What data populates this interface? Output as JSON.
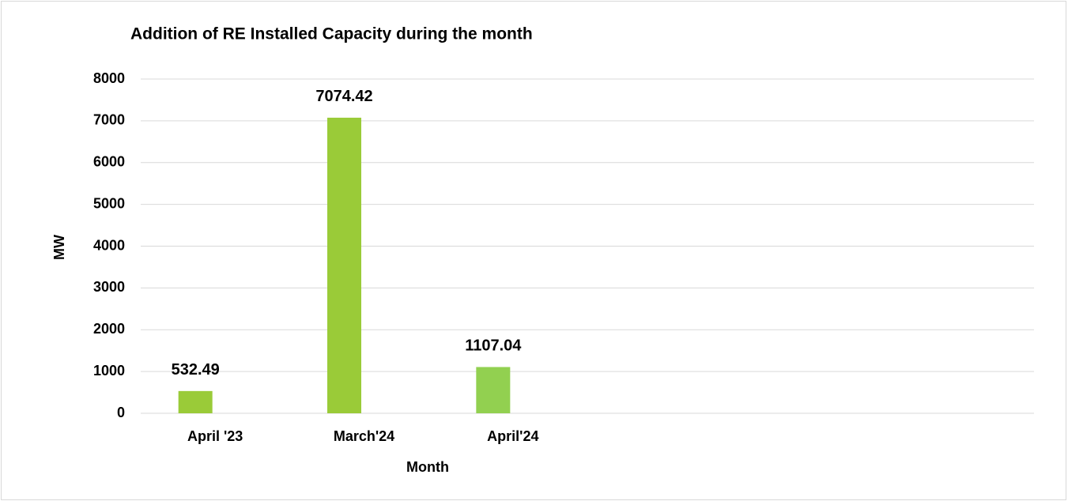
{
  "chart_data": {
    "type": "bar",
    "title": "Addition of  RE Installed Capacity during the month",
    "x_label": "Month",
    "y_label": "MW",
    "categories": [
      "April '23",
      "March'24",
      "April'24",
      null,
      null,
      null
    ],
    "values": [
      532.49,
      7074.42,
      1107.04,
      null,
      null,
      null
    ],
    "colors": [
      "#9acb38",
      "#9acb38",
      "#92d050"
    ],
    "ylim": [
      0,
      8000
    ],
    "yticks": [
      0,
      1000,
      2000,
      3000,
      4000,
      5000,
      6000,
      7000,
      8000
    ],
    "grid": true
  }
}
